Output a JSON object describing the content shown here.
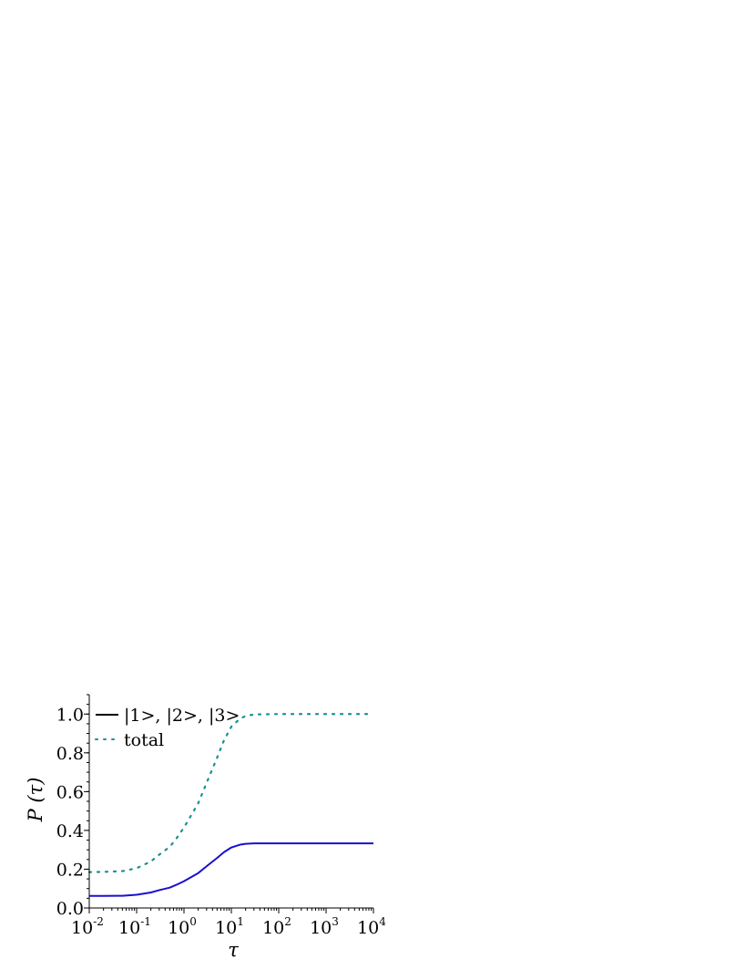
{
  "chart_data": {
    "type": "line",
    "xscale": "log",
    "xlim": [
      0.01,
      10000
    ],
    "ylim": [
      0,
      1.1
    ],
    "xlabel": "τ",
    "ylabel": "P (τ)",
    "xticks": [
      {
        "base": "10",
        "exp": "-2",
        "value": 0.01
      },
      {
        "base": "10",
        "exp": "-1",
        "value": 0.1
      },
      {
        "base": "10",
        "exp": "0",
        "value": 1
      },
      {
        "base": "10",
        "exp": "1",
        "value": 10
      },
      {
        "base": "10",
        "exp": "2",
        "value": 100
      },
      {
        "base": "10",
        "exp": "3",
        "value": 1000
      },
      {
        "base": "10",
        "exp": "4",
        "value": 10000
      }
    ],
    "yticks": [
      "0.0",
      "0.2",
      "0.4",
      "0.6",
      "0.8",
      "1.0"
    ],
    "legend_position": "top-left",
    "series": [
      {
        "name": "|1>, |2>, |3>",
        "color": "#1a10d0",
        "legend_color": "#000000",
        "style": "solid",
        "points": [
          [
            0.01,
            0.062
          ],
          [
            0.02,
            0.062
          ],
          [
            0.05,
            0.063
          ],
          [
            0.1,
            0.068
          ],
          [
            0.2,
            0.08
          ],
          [
            0.3,
            0.092
          ],
          [
            0.5,
            0.105
          ],
          [
            0.7,
            0.12
          ],
          [
            1,
            0.138
          ],
          [
            2,
            0.18
          ],
          [
            3,
            0.215
          ],
          [
            5,
            0.258
          ],
          [
            7,
            0.288
          ],
          [
            10,
            0.312
          ],
          [
            15,
            0.326
          ],
          [
            20,
            0.331
          ],
          [
            30,
            0.333
          ],
          [
            100,
            0.333
          ],
          [
            1000,
            0.333
          ],
          [
            10000,
            0.333
          ]
        ]
      },
      {
        "name": "total",
        "color": "#1a9090",
        "style": "dotted",
        "points": [
          [
            0.01,
            0.185
          ],
          [
            0.02,
            0.186
          ],
          [
            0.05,
            0.19
          ],
          [
            0.1,
            0.205
          ],
          [
            0.2,
            0.24
          ],
          [
            0.3,
            0.275
          ],
          [
            0.5,
            0.315
          ],
          [
            0.7,
            0.36
          ],
          [
            1,
            0.415
          ],
          [
            2,
            0.54
          ],
          [
            3,
            0.645
          ],
          [
            5,
            0.775
          ],
          [
            7,
            0.865
          ],
          [
            10,
            0.935
          ],
          [
            15,
            0.975
          ],
          [
            20,
            0.99
          ],
          [
            30,
            0.998
          ],
          [
            100,
            1.0
          ],
          [
            1000,
            1.0
          ],
          [
            10000,
            1.0
          ]
        ]
      }
    ]
  }
}
